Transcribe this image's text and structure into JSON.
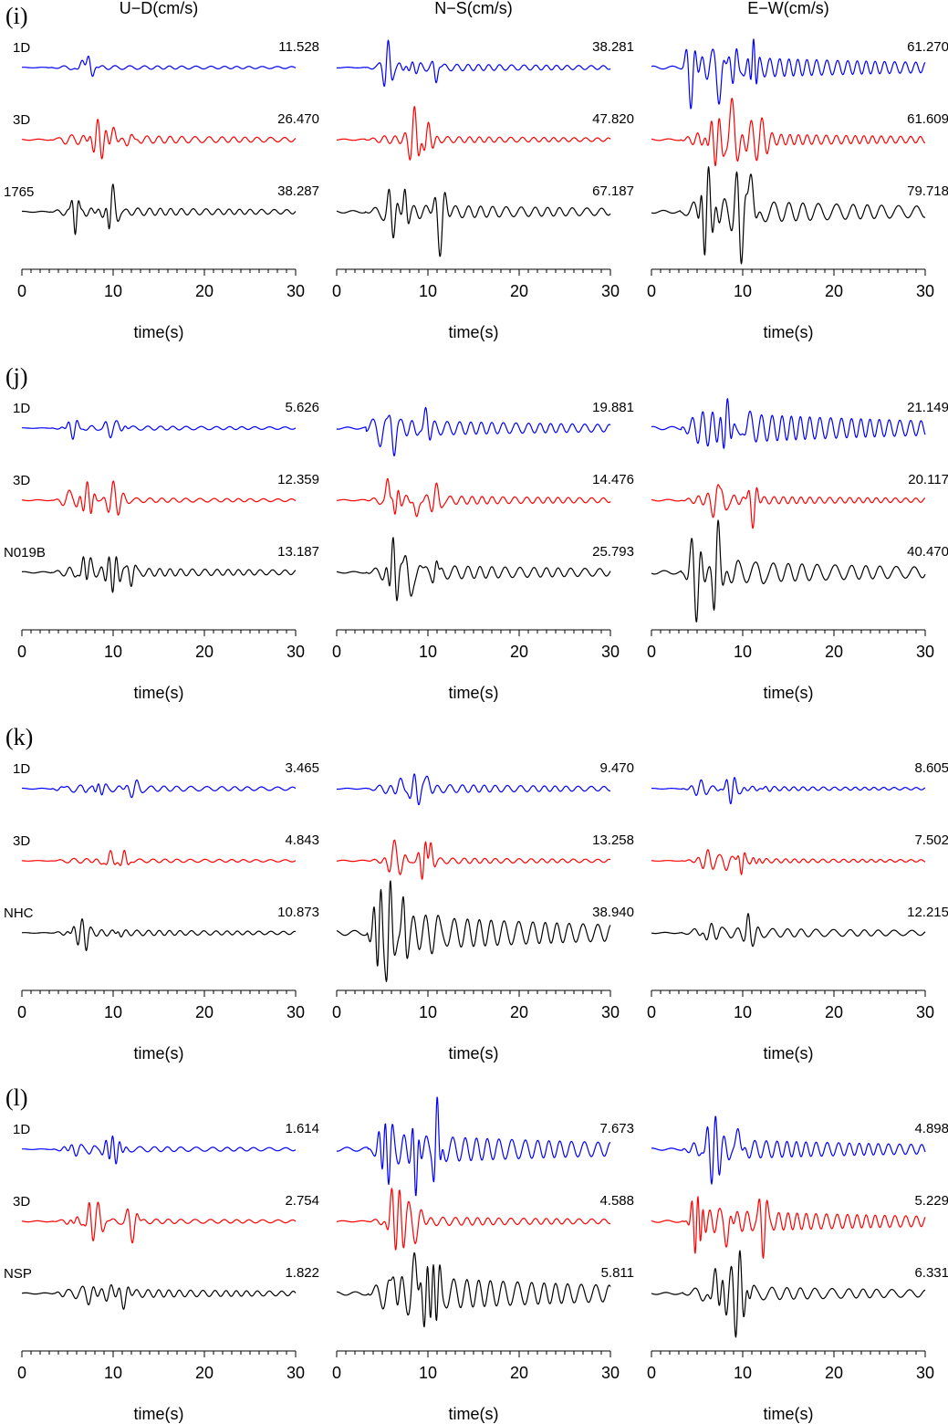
{
  "chart_data": {
    "type": "line",
    "headers": [
      "U−D(cm/s)",
      "N−S(cm/s)",
      "E−W(cm/s)"
    ],
    "xlabel": "time(s)",
    "xlim": [
      0,
      30
    ],
    "x_ticks": [
      "0",
      "10",
      "20",
      "30"
    ],
    "colors": {
      "1D": "#0000ff",
      "3D": "#ff0000",
      "obs": "#000000"
    },
    "panels": [
      {
        "label": "(i)",
        "station": "1765",
        "rows": [
          "1D",
          "3D",
          "1765"
        ],
        "peaks": [
          [
            "11.528",
            "26.470",
            "38.287"
          ],
          [
            "38.281",
            "47.820",
            "67.187"
          ],
          [
            "61.270",
            "61.609",
            "79.718"
          ]
        ]
      },
      {
        "label": "(j)",
        "station": "N019B",
        "rows": [
          "1D",
          "3D",
          "N019B"
        ],
        "peaks": [
          [
            "5.626",
            "12.359",
            "13.187"
          ],
          [
            "19.881",
            "14.476",
            "25.793"
          ],
          [
            "21.149",
            "20.117",
            "40.470"
          ]
        ]
      },
      {
        "label": "(k)",
        "station": "NHC",
        "rows": [
          "1D",
          "3D",
          "NHC"
        ],
        "peaks": [
          [
            "3.465",
            "4.843",
            "10.873"
          ],
          [
            "9.470",
            "13.258",
            "38.940"
          ],
          [
            "8.605",
            "7.502",
            "12.215"
          ]
        ]
      },
      {
        "label": "(l)",
        "station": "NSP",
        "rows": [
          "1D",
          "3D",
          "NSP"
        ],
        "peaks": [
          [
            "1.614",
            "2.754",
            "1.822"
          ],
          [
            "7.673",
            "4.588",
            "5.811"
          ],
          [
            "4.898",
            "5.229",
            "6.331"
          ]
        ]
      }
    ]
  }
}
